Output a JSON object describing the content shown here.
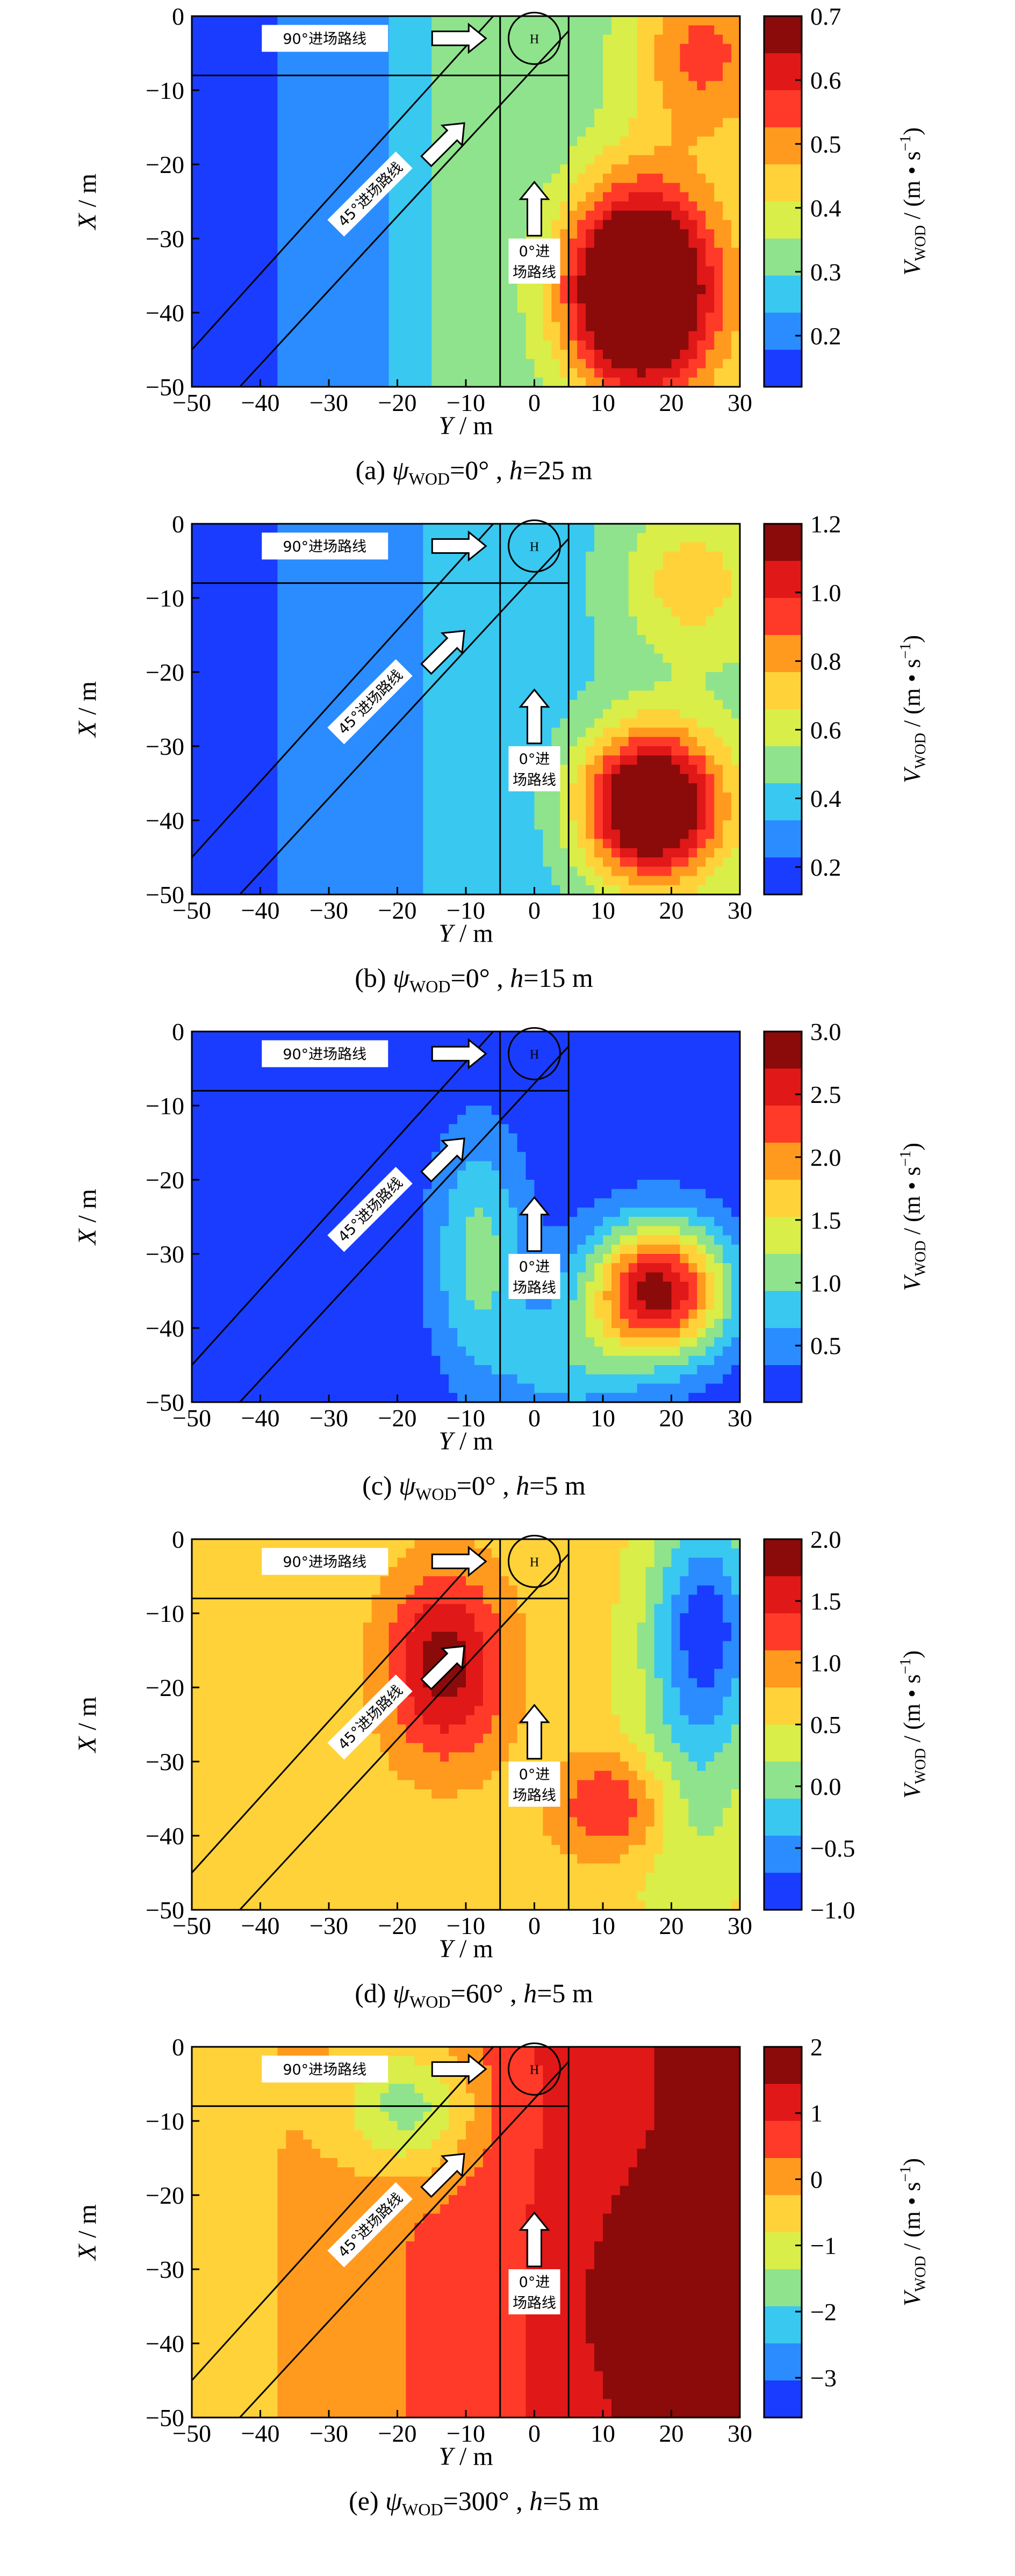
{
  "figure": {
    "colorbar_label_main": "V",
    "colorbar_label_sub": "WOD",
    "colorbar_label_unit_a": " / (m • s",
    "colorbar_label_unit_sup": "−1",
    "colorbar_label_unit_b": ")",
    "route_90": "90°进场路线",
    "route_45": "45°进场路线",
    "route_0_line1": "0°进",
    "route_0_line2": "场路线",
    "helipad": "H"
  },
  "chart_data": [
    {
      "type": "heatmap",
      "panel": "a",
      "caption_prefix": "(a) ",
      "psi_symbol": "ψ",
      "psi_sub": "WOD",
      "psi_value": "=0°",
      "h_symbol": "h",
      "h_value": "=25 m",
      "xlabel_var": "Y",
      "xlabel_unit": " / m",
      "ylabel_var": "X",
      "ylabel_unit": " / m",
      "xlim": [
        -50,
        30
      ],
      "ylim": [
        -50,
        0
      ],
      "xticks": [
        "-50",
        "-40",
        "-30",
        "-20",
        "-10",
        "0",
        "10",
        "20",
        "30"
      ],
      "yticks": [
        "0",
        "-10",
        "-20",
        "-30",
        "-40",
        "-50"
      ],
      "colorbar": {
        "min": 0.12,
        "max": 0.7,
        "ticks": [
          "0.2",
          "0.3",
          "0.4",
          "0.5",
          "0.6",
          "0.7"
        ],
        "colors": [
          "#1a3cff",
          "#2a8cff",
          "#39c8f0",
          "#8fe38c",
          "#d9ee48",
          "#ffd23a",
          "#ff9a1e",
          "#ff3a28",
          "#e01818",
          "#8b0a0a"
        ]
      },
      "field": {
        "type": "linear",
        "base": 0.14,
        "grad": [
          0.003,
          0.0
        ],
        "blobs": [
          {
            "x": 15,
            "y": -37,
            "sx": 11,
            "sy": 14,
            "a": 0.58
          },
          {
            "x": 24,
            "y": -5,
            "sx": 10,
            "sy": 12,
            "a": 0.18
          }
        ],
        "floor_from_x": -30,
        "floor_value": 0.3
      }
    },
    {
      "type": "heatmap",
      "panel": "b",
      "caption_prefix": "(b) ",
      "psi_symbol": "ψ",
      "psi_sub": "WOD",
      "psi_value": "=0°",
      "h_symbol": "h",
      "h_value": "=15 m",
      "xlabel_var": "Y",
      "xlabel_unit": " / m",
      "ylabel_var": "X",
      "ylabel_unit": " / m",
      "xlim": [
        -50,
        30
      ],
      "ylim": [
        -50,
        0
      ],
      "xticks": [
        "-50",
        "-40",
        "-30",
        "-20",
        "-10",
        "0",
        "10",
        "20",
        "30"
      ],
      "yticks": [
        "0",
        "-10",
        "-20",
        "-30",
        "-40",
        "-50"
      ],
      "colorbar": {
        "min": 0.12,
        "max": 1.2,
        "ticks": [
          "0.2",
          "0.4",
          "0.6",
          "0.8",
          "1.0",
          "1.2"
        ],
        "colors": [
          "#1a3cff",
          "#2a8cff",
          "#39c8f0",
          "#8fe38c",
          "#d9ee48",
          "#ffd23a",
          "#ff9a1e",
          "#ff3a28",
          "#e01818",
          "#8b0a0a"
        ]
      },
      "field": {
        "type": "linear",
        "base": 0.18,
        "grad": [
          0.004,
          0.0
        ],
        "blobs": [
          {
            "x": 17,
            "y": -38,
            "sx": 10,
            "sy": 10,
            "a": 1.0
          },
          {
            "x": 22,
            "y": -8,
            "sx": 10,
            "sy": 10,
            "a": 0.25
          }
        ],
        "floor_from_x": -30,
        "floor_value": 0.35
      }
    },
    {
      "type": "heatmap",
      "panel": "c",
      "caption_prefix": "(c) ",
      "psi_symbol": "ψ",
      "psi_sub": "WOD",
      "psi_value": "=0°",
      "h_symbol": "h",
      "h_value": "=5 m",
      "xlabel_var": "Y",
      "xlabel_unit": " / m",
      "ylabel_var": "X",
      "ylabel_unit": " / m",
      "xlim": [
        -50,
        30
      ],
      "ylim": [
        -50,
        0
      ],
      "xticks": [
        "-50",
        "-40",
        "-30",
        "-20",
        "-10",
        "0",
        "10",
        "20",
        "30"
      ],
      "yticks": [
        "0",
        "-10",
        "-20",
        "-30",
        "-40",
        "-50"
      ],
      "colorbar": {
        "min": 0.05,
        "max": 3.0,
        "ticks": [
          "0.5",
          "1.0",
          "1.5",
          "2.0",
          "2.5",
          "3.0"
        ],
        "colors": [
          "#1a3cff",
          "#2a8cff",
          "#39c8f0",
          "#8fe38c",
          "#d9ee48",
          "#ffd23a",
          "#ff9a1e",
          "#ff3a28",
          "#e01818",
          "#8b0a0a"
        ]
      },
      "field": {
        "type": "linear",
        "base": 0.15,
        "grad": [
          0.0,
          0.0
        ],
        "blobs": [
          {
            "x": 18,
            "y": -35,
            "sx": 10,
            "sy": 9,
            "a": 2.7
          },
          {
            "x": -8,
            "y": -30,
            "sx": 7,
            "sy": 16,
            "a": 0.9
          },
          {
            "x": 5,
            "y": -45,
            "sx": 10,
            "sy": 8,
            "a": 0.6
          }
        ]
      }
    },
    {
      "type": "heatmap",
      "panel": "d",
      "caption_prefix": "(d) ",
      "psi_symbol": "ψ",
      "psi_sub": "WOD",
      "psi_value": "=60°",
      "h_symbol": "h",
      "h_value": "=5 m",
      "xlabel_var": "Y",
      "xlabel_unit": " / m",
      "ylabel_var": "X",
      "ylabel_unit": " / m",
      "xlim": [
        -50,
        30
      ],
      "ylim": [
        -50,
        0
      ],
      "xticks": [
        "-50",
        "-40",
        "-30",
        "-20",
        "-10",
        "0",
        "10",
        "20",
        "30"
      ],
      "yticks": [
        "0",
        "-10",
        "-20",
        "-30",
        "-40",
        "-50"
      ],
      "colorbar": {
        "min": -1.0,
        "max": 2.0,
        "ticks": [
          "-1.0",
          "-0.5",
          "0.0",
          "0.5",
          "1.0",
          "1.5",
          "2.0"
        ],
        "colors": [
          "#1a3cff",
          "#2a8cff",
          "#39c8f0",
          "#8fe38c",
          "#d9ee48",
          "#ffd23a",
          "#ff9a1e",
          "#ff3a28",
          "#e01818",
          "#8b0a0a"
        ]
      },
      "field": {
        "type": "linear",
        "base": 0.6,
        "grad": [
          0.0,
          0.0
        ],
        "blobs": [
          {
            "x": -13,
            "y": -17,
            "sx": 9,
            "sy": 13,
            "a": 1.25
          },
          {
            "x": 12,
            "y": -36,
            "sx": 9,
            "sy": 7,
            "a": 0.9
          },
          {
            "x": 25,
            "y": -12,
            "sx": 8,
            "sy": 15,
            "a": -1.5
          },
          {
            "x": 22,
            "y": -35,
            "sx": 9,
            "sy": 14,
            "a": -0.55
          }
        ]
      }
    },
    {
      "type": "heatmap",
      "panel": "e",
      "caption_prefix": "(e) ",
      "psi_symbol": "ψ",
      "psi_sub": "WOD",
      "psi_value": "=300°",
      "h_symbol": "h",
      "h_value": "=5 m",
      "xlabel_var": "Y",
      "xlabel_unit": " / m",
      "ylabel_var": "X",
      "ylabel_unit": " / m",
      "xlim": [
        -50,
        30
      ],
      "ylim": [
        -50,
        0
      ],
      "xticks": [
        "-50",
        "-40",
        "-30",
        "-20",
        "-10",
        "0",
        "10",
        "20",
        "30"
      ],
      "yticks": [
        "0",
        "-10",
        "-20",
        "-30",
        "-40",
        "-50"
      ],
      "colorbar": {
        "min": -3.6,
        "max": 2.0,
        "ticks": [
          "-3",
          "-2",
          "-1",
          "0",
          "1",
          "2"
        ],
        "colors": [
          "#1a3cff",
          "#2a8cff",
          "#39c8f0",
          "#8fe38c",
          "#d9ee48",
          "#ffd23a",
          "#ff9a1e",
          "#ff3a28",
          "#e01818",
          "#8b0a0a"
        ]
      },
      "field": {
        "type": "linear",
        "base": -0.6,
        "grad": [
          0.03,
          0.0
        ],
        "blobs": [
          {
            "x": -18,
            "y": -8,
            "sx": 10,
            "sy": 9,
            "a": -1.9
          },
          {
            "x": 22,
            "y": -35,
            "sx": 12,
            "sy": 13,
            "a": 1.3
          }
        ]
      }
    }
  ]
}
